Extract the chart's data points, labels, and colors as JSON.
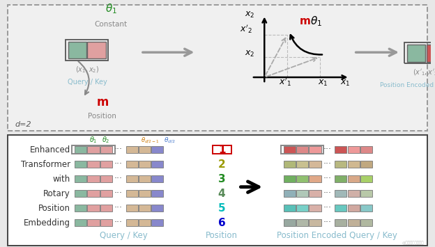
{
  "bg_color": "#e8e8e8",
  "top_bg": "#f0f0f0",
  "bottom_bg": "#ffffff",
  "rows": [
    "Enhanced",
    "Transformer",
    "with",
    "Rotary",
    "Position",
    "Embedding"
  ],
  "positions": [
    "1",
    "2",
    "3",
    "4",
    "5",
    "6"
  ],
  "position_colors": [
    "#cc0000",
    "#999900",
    "#228B22",
    "#558855",
    "#00bbbb",
    "#0000cc"
  ],
  "qk_left_colors": [
    "#8ab8a0",
    "#e0a0a0"
  ],
  "qk_right_colors": [
    "#d4b896",
    "#9090cc"
  ],
  "enc_row_colors": [
    [
      "#cc5555",
      "#dd8888",
      "#ee9999",
      "#cc5555",
      "#ee9999",
      "#dd8888"
    ],
    [
      "#b0b878",
      "#c8c090",
      "#d4b898",
      "#b8b880",
      "#d0b890",
      "#c0a880"
    ],
    [
      "#70b060",
      "#90c070",
      "#e0a888",
      "#80b068",
      "#d8a888",
      "#a8d068"
    ],
    [
      "#90b0b8",
      "#b0c8b8",
      "#d8b0a8",
      "#a0b8b8",
      "#d0b0a8",
      "#b8c8a8"
    ],
    [
      "#58c0b8",
      "#78d0c8",
      "#d8b0a8",
      "#68c8c0",
      "#d0a8a0",
      "#88c8c8"
    ],
    [
      "#98a8a0",
      "#b0b8a8",
      "#c8b8a0",
      "#a8b0a0",
      "#c0b098",
      "#b0b8a0"
    ]
  ],
  "theta1_color": "#228B22",
  "theta2_color": "#228B22",
  "thetad21_color": "#cc7700",
  "thetad2_color": "#4477cc",
  "axis_color": "#888888",
  "m_color": "#cc0000"
}
